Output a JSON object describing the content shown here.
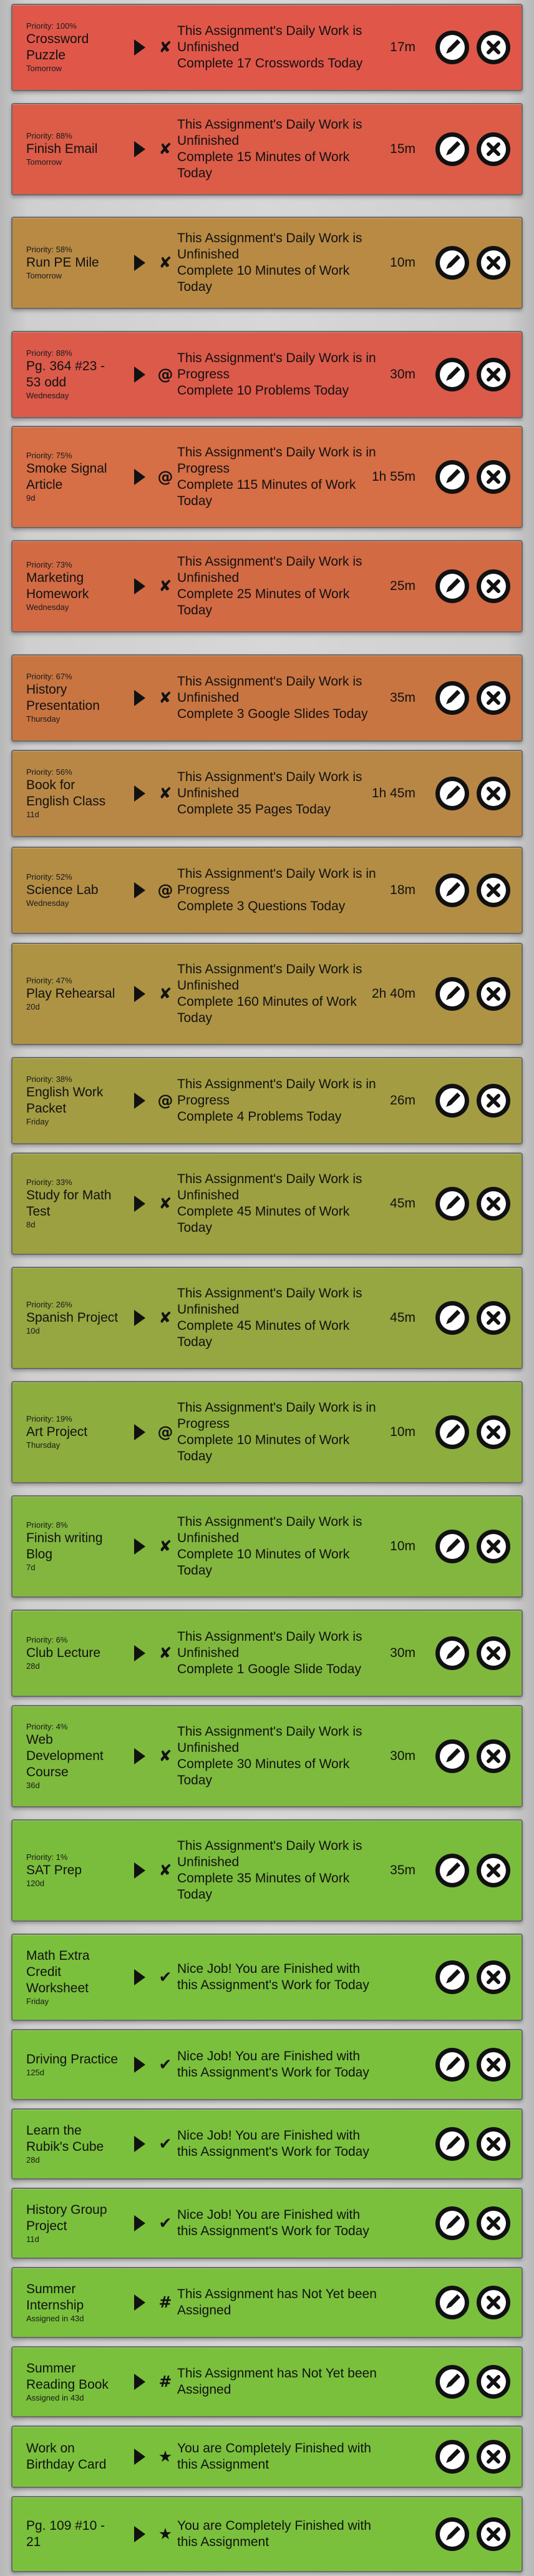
{
  "tasks": [
    {
      "priority": "Priority: 100%",
      "title": "Crossword Puzzle",
      "due": "Tomorrow",
      "status_icon": "x-icon",
      "status_line1": "This Assignment's Daily Work is Unfinished",
      "status_line2": "Complete 17 Crosswords Today",
      "time": "17m",
      "color": "#e0574a"
    },
    {
      "priority": "Priority: 88%",
      "title": "Finish Email",
      "due": "Tomorrow",
      "status_icon": "x-icon",
      "status_line1": "This Assignment's Daily Work is Unfinished",
      "status_line2": "Complete 15 Minutes of Work Today",
      "time": "15m",
      "color": "#dc5c48"
    },
    {
      "priority": "Priority: 58%",
      "title": "Run PE Mile",
      "due": "Tomorrow",
      "status_icon": "x-icon",
      "status_line1": "This Assignment's Daily Work is Unfinished",
      "status_line2": "Complete 10 Minutes of Work Today",
      "time": "10m",
      "color": "#b88a44"
    },
    {
      "priority": "Priority: 88%",
      "title": "Pg. 364 #23 - 53 odd",
      "due": "Wednesday",
      "status_icon": "at-icon",
      "status_line1": "This Assignment's Daily Work is in Progress",
      "status_line2": "Complete 10 Problems Today",
      "time": "30m",
      "color": "#dc5a4a"
    },
    {
      "priority": "Priority: 75%",
      "title": "Smoke Signal Article",
      "due": "9d",
      "status_icon": "at-icon",
      "status_line1": "This Assignment's Daily Work is in Progress",
      "status_line2": "Complete 115 Minutes of Work Today",
      "time": "1h 55m",
      "color": "#d66e46"
    },
    {
      "priority": "Priority: 73%",
      "title": "Marketing Homework",
      "due": "Wednesday",
      "status_icon": "x-icon",
      "status_line1": "This Assignment's Daily Work is Unfinished",
      "status_line2": "Complete 25 Minutes of Work Today",
      "time": "25m",
      "color": "#d26a44"
    },
    {
      "priority": "Priority: 67%",
      "title": "History Presentation",
      "due": "Thursday",
      "status_icon": "x-icon",
      "status_line1": "This Assignment's Daily Work is Unfinished",
      "status_line2": "Complete 3 Google Slides Today",
      "time": "35m",
      "color": "#c97542"
    },
    {
      "priority": "Priority: 56%",
      "title": "Book for English Class",
      "due": "11d",
      "status_icon": "x-icon",
      "status_line1": "This Assignment's Daily Work is Unfinished",
      "status_line2": "Complete 35 Pages Today",
      "time": "1h 45m",
      "color": "#b98745"
    },
    {
      "priority": "Priority: 52%",
      "title": "Science Lab",
      "due": "Wednesday",
      "status_icon": "at-icon",
      "status_line1": "This Assignment's Daily Work is in Progress",
      "status_line2": "Complete 3 Questions Today",
      "time": "18m",
      "color": "#b38d44"
    },
    {
      "priority": "Priority: 47%",
      "title": "Play Rehearsal",
      "due": "20d",
      "status_icon": "x-icon",
      "status_line1": "This Assignment's Daily Work is Unfinished",
      "status_line2": "Complete 160 Minutes of Work Today",
      "time": "2h 40m",
      "color": "#ad9343"
    },
    {
      "priority": "Priority: 38%",
      "title": "English Work Packet",
      "due": "Friday",
      "status_icon": "at-icon",
      "status_line1": "This Assignment's Daily Work is in Progress",
      "status_line2": "Complete 4 Problems Today",
      "time": "26m",
      "color": "#a39c42"
    },
    {
      "priority": "Priority: 33%",
      "title": "Study for Math Test",
      "due": "8d",
      "status_icon": "x-icon",
      "status_line1": "This Assignment's Daily Work is Unfinished",
      "status_line2": "Complete 45 Minutes of Work Today",
      "time": "45m",
      "color": "#9ca040"
    },
    {
      "priority": "Priority: 26%",
      "title": "Spanish Project",
      "due": "10d",
      "status_icon": "x-icon",
      "status_line1": "This Assignment's Daily Work is Unfinished",
      "status_line2": "Complete 45 Minutes of Work Today",
      "time": "45m",
      "color": "#96a640"
    },
    {
      "priority": "Priority: 19%",
      "title": "Art Project",
      "due": "Thursday",
      "status_icon": "at-icon",
      "status_line1": "This Assignment's Daily Work is in Progress",
      "status_line2": "Complete 10 Minutes of Work Today",
      "time": "10m",
      "color": "#8dad3e"
    },
    {
      "priority": "Priority: 8%",
      "title": "Finish writing Blog",
      "due": "7d",
      "status_icon": "x-icon",
      "status_line1": "This Assignment's Daily Work is Unfinished",
      "status_line2": "Complete 10 Minutes of Work Today",
      "time": "10m",
      "color": "#82b63e"
    },
    {
      "priority": "Priority: 6%",
      "title": "Club Lecture",
      "due": "28d",
      "status_icon": "x-icon",
      "status_line1": "This Assignment's Daily Work is Unfinished",
      "status_line2": "Complete 1 Google Slide Today",
      "time": "30m",
      "color": "#80b83d"
    },
    {
      "priority": "Priority: 4%",
      "title": "Web Development Course",
      "due": "36d",
      "status_icon": "x-icon",
      "status_line1": "This Assignment's Daily Work is Unfinished",
      "status_line2": "Complete 30 Minutes of Work Today",
      "time": "30m",
      "color": "#7eba3d"
    },
    {
      "priority": "Priority: 1%",
      "title": "SAT Prep",
      "due": "120d",
      "status_icon": "x-icon",
      "status_line1": "This Assignment's Daily Work is Unfinished",
      "status_line2": "Complete 35 Minutes of Work Today",
      "time": "35m",
      "color": "#7abc3c"
    },
    {
      "priority": "",
      "title": "Math Extra Credit Worksheet",
      "due": "Friday",
      "status_icon": "check-icon",
      "status_line1": "Nice Job! You are Finished with this Assignment's Work for Today",
      "status_line2": "",
      "time": "",
      "color": "#7ac03c"
    },
    {
      "priority": "",
      "title": "Driving Practice",
      "due": "125d",
      "status_icon": "check-icon",
      "status_line1": "Nice Job! You are Finished with this Assignment's Work for Today",
      "status_line2": "",
      "time": "",
      "color": "#7ac03c"
    },
    {
      "priority": "",
      "title": "Learn the Rubik's Cube",
      "due": "28d",
      "status_icon": "check-icon",
      "status_line1": "Nice Job! You are Finished with this Assignment's Work for Today",
      "status_line2": "",
      "time": "",
      "color": "#7ac03c"
    },
    {
      "priority": "",
      "title": "History Group Project",
      "due": "11d",
      "status_icon": "check-icon",
      "status_line1": "Nice Job! You are Finished with this Assignment's Work for Today",
      "status_line2": "",
      "time": "",
      "color": "#7ac03c"
    },
    {
      "priority": "",
      "title": "Summer Internship",
      "due": "Assigned in 43d",
      "status_icon": "hash-icon",
      "status_line1": "This Assignment has Not Yet been Assigned",
      "status_line2": "",
      "time": "",
      "color": "#7ac03c"
    },
    {
      "priority": "",
      "title": "Summer Reading Book",
      "due": "Assigned in 43d",
      "status_icon": "hash-icon",
      "status_line1": "This Assignment has Not Yet been Assigned",
      "status_line2": "",
      "time": "",
      "color": "#7ac03c"
    },
    {
      "priority": "",
      "title": "Work on Birthday Card",
      "due": "",
      "status_icon": "star-icon",
      "status_line1": "You are Completely Finished with this Assignment",
      "status_line2": "",
      "time": "",
      "color": "#7ac03c"
    },
    {
      "priority": "",
      "title": "Pg. 109 #10 - 21",
      "due": "",
      "status_icon": "star-icon",
      "status_line1": "You are Completely Finished with this Assignment",
      "status_line2": "",
      "time": "",
      "color": "#7ac03c"
    }
  ]
}
